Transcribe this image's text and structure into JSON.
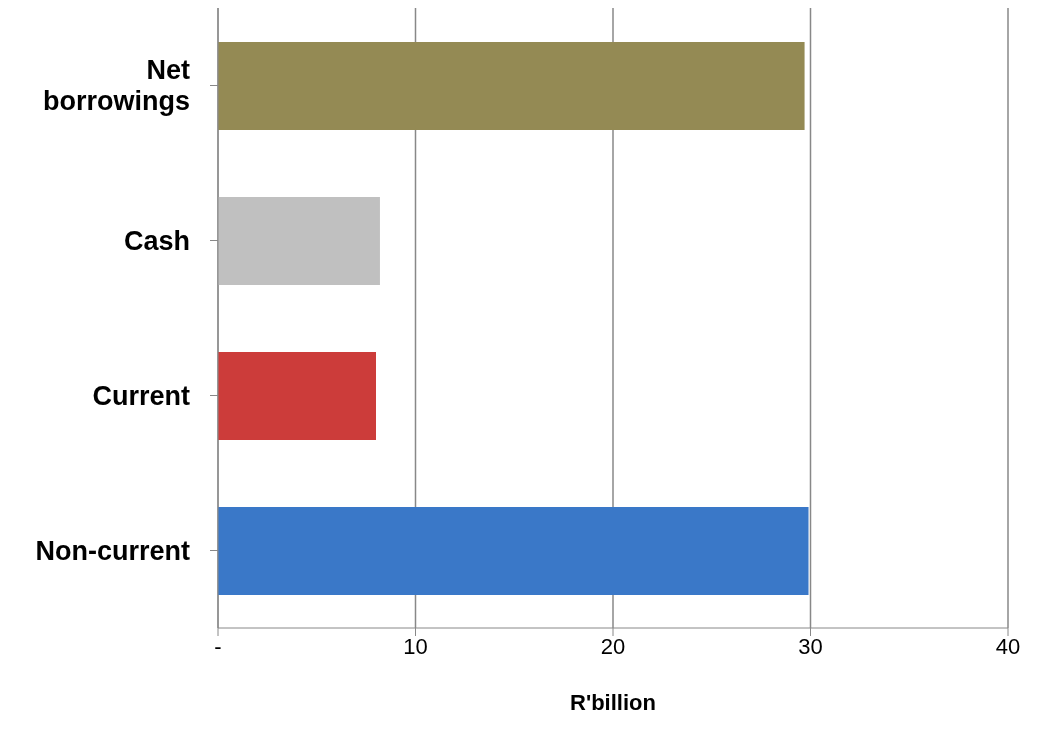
{
  "chart_data": {
    "type": "bar",
    "orientation": "horizontal",
    "xlabel": "R'billion",
    "categories": [
      "Net borrowings",
      "Cash",
      "Current",
      "Non-current"
    ],
    "values": [
      29.7,
      8.2,
      8.0,
      29.9
    ],
    "colors": [
      "#948a54",
      "#c0c0c0",
      "#cc3c3a",
      "#3a78c8"
    ],
    "xlim": [
      0,
      40
    ],
    "xticks": [
      {
        "value": 0,
        "label": "-"
      },
      10,
      20,
      30,
      40
    ],
    "grid": "x"
  }
}
